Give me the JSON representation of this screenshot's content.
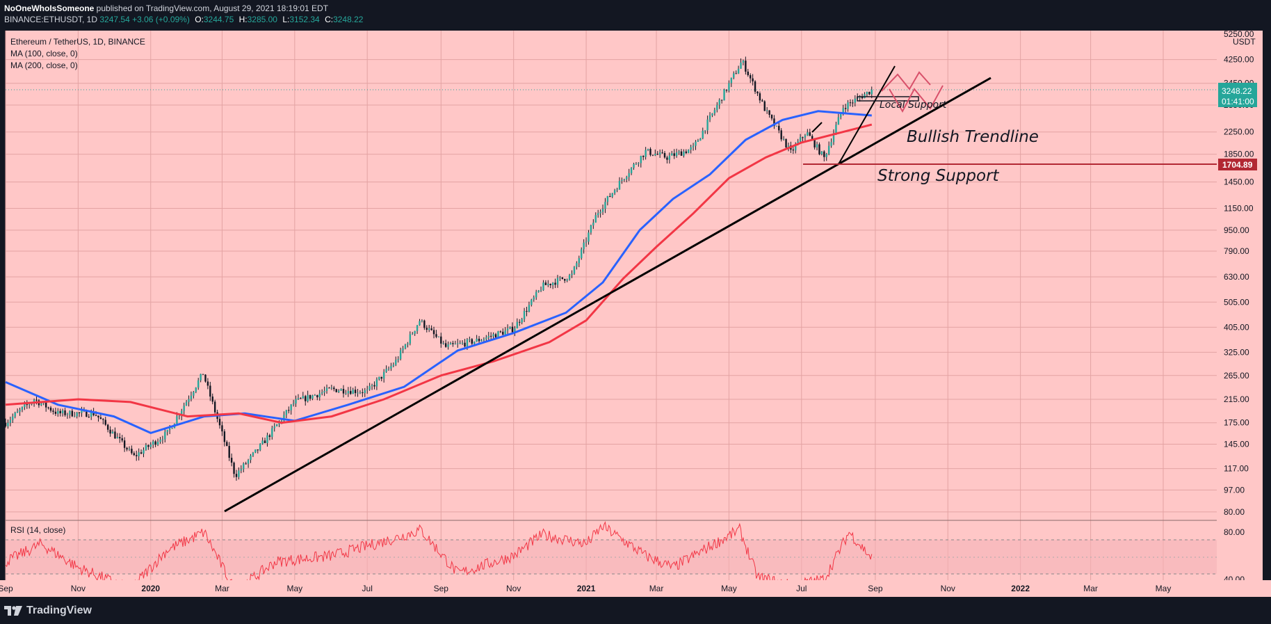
{
  "header": {
    "author": "NoOneWhoIsSomeone",
    "published_text": " published on TradingView.com, August 29, 2021 18:19:01 EDT",
    "symbol": "BINANCE:ETHUSDT, 1D",
    "last": "3247.54",
    "change": "+3.06 (+0.09%)",
    "o_label": "O:",
    "o": "3244.75",
    "h_label": "H:",
    "h": "3285.00",
    "l_label": "L:",
    "l": "3152.34",
    "c_label": "C:",
    "c": "3248.22"
  },
  "legend": {
    "title": "Ethereum / TetherUS, 1D, BINANCE",
    "ma100": "MA (100, close, 0)",
    "ma200": "MA (200, close, 0)",
    "rsi": "RSI (14, close)"
  },
  "price_axis": {
    "unit": "USDT",
    "top_cut": "5250.00",
    "ticks": [
      "4250.00",
      "3450.00",
      "2850.00",
      "2250.00",
      "1850.00",
      "1450.00",
      "1150.00",
      "950.00",
      "790.00",
      "630.00",
      "505.00",
      "405.00",
      "325.00",
      "265.00",
      "215.00",
      "175.00",
      "145.00",
      "117.00",
      "97.00",
      "80.00"
    ],
    "last_price": "3248.22",
    "countdown": "01:41:00",
    "support_price": "1704.89"
  },
  "rsi_axis": {
    "ticks": [
      "80.00",
      "40.00"
    ]
  },
  "time_axis": {
    "labels": [
      "Sep",
      "Nov",
      "2020",
      "Mar",
      "May",
      "Jul",
      "Sep",
      "Nov",
      "2021",
      "Mar",
      "May",
      "Jul",
      "Sep",
      "Nov",
      "2022",
      "Mar",
      "May"
    ],
    "bold": [
      "2020",
      "2021",
      "2022"
    ]
  },
  "annotations": {
    "local_support": "Local Support",
    "bullish_trendline": "Bullish Trendline",
    "strong_support": "Strong Support"
  },
  "footer": {
    "brand": "TradingView"
  },
  "colors": {
    "background": "#ffc7c7",
    "ma100": "#2962ff",
    "ma200": "#f23645",
    "rsi": "#f23645",
    "up_candle": "#26a69a",
    "down_candle": "#131722",
    "price_tag": "#26a69a",
    "support_tag": "#b22833"
  },
  "chart_data": {
    "type": "line",
    "title": "Ethereum / TetherUS, 1D, BINANCE",
    "xlabel": "",
    "ylabel": "USDT",
    "y_scale": "log",
    "ylim": [
      78,
      5250
    ],
    "x_range": [
      "2019-09-01",
      "2022-06-15"
    ],
    "grid": true,
    "price": {
      "name": "close",
      "x": [
        "2019-09-01",
        "2019-09-25",
        "2019-10-15",
        "2019-11-15",
        "2019-12-18",
        "2020-01-15",
        "2020-02-14",
        "2020-03-12",
        "2020-04-01",
        "2020-05-01",
        "2020-06-01",
        "2020-07-01",
        "2020-07-25",
        "2020-08-14",
        "2020-09-05",
        "2020-10-01",
        "2020-11-01",
        "2020-11-25",
        "2020-12-20",
        "2021-01-10",
        "2021-02-01",
        "2021-02-20",
        "2021-03-10",
        "2021-04-01",
        "2021-05-12",
        "2021-06-01",
        "2021-06-22",
        "2021-07-05",
        "2021-07-20",
        "2021-08-05",
        "2021-08-29"
      ],
      "y": [
        175,
        215,
        190,
        190,
        130,
        160,
        270,
        110,
        140,
        210,
        235,
        230,
        300,
        430,
        340,
        360,
        400,
        580,
        640,
        1100,
        1500,
        1900,
        1800,
        1950,
        4200,
        2700,
        1880,
        2250,
        1790,
        2800,
        3248
      ]
    },
    "series": [
      {
        "name": "MA (100, close, 0)",
        "x": [
          "2019-09-01",
          "2019-10-15",
          "2019-12-01",
          "2020-01-01",
          "2020-02-15",
          "2020-03-20",
          "2020-05-01",
          "2020-06-15",
          "2020-08-01",
          "2020-09-15",
          "2020-11-01",
          "2020-12-15",
          "2021-01-15",
          "2021-02-15",
          "2021-03-15",
          "2021-04-15",
          "2021-05-15",
          "2021-06-15",
          "2021-07-15",
          "2021-08-29"
        ],
        "values": [
          250,
          205,
          185,
          160,
          185,
          190,
          178,
          205,
          240,
          330,
          385,
          460,
          600,
          950,
          1250,
          1550,
          2100,
          2500,
          2700,
          2600
        ]
      },
      {
        "name": "MA (200, close, 0)",
        "x": [
          "2019-09-01",
          "2019-11-01",
          "2019-12-15",
          "2020-02-01",
          "2020-03-15",
          "2020-04-20",
          "2020-06-01",
          "2020-07-15",
          "2020-09-01",
          "2020-10-15",
          "2020-12-01",
          "2021-01-01",
          "2021-02-01",
          "2021-03-01",
          "2021-04-01",
          "2021-05-01",
          "2021-06-01",
          "2021-07-01",
          "2021-08-29"
        ],
        "values": [
          205,
          215,
          210,
          185,
          190,
          175,
          185,
          215,
          265,
          300,
          355,
          430,
          620,
          820,
          1100,
          1500,
          1800,
          2050,
          2400
        ]
      }
    ],
    "rsi": {
      "name": "RSI (14, close)",
      "ylim": [
        30,
        90
      ],
      "x": [
        "2019-09-01",
        "2019-10-01",
        "2019-11-01",
        "2019-12-15",
        "2020-01-15",
        "2020-02-15",
        "2020-03-12",
        "2020-04-15",
        "2020-06-01",
        "2020-07-25",
        "2020-08-15",
        "2020-09-15",
        "2020-11-01",
        "2020-11-25",
        "2021-01-01",
        "2021-01-15",
        "2021-02-20",
        "2021-03-15",
        "2021-04-15",
        "2021-05-10",
        "2021-05-25",
        "2021-06-22",
        "2021-07-20",
        "2021-08-10",
        "2021-08-29"
      ],
      "values": [
        55,
        70,
        50,
        32,
        65,
        80,
        30,
        55,
        60,
        75,
        82,
        45,
        60,
        78,
        70,
        85,
        60,
        50,
        68,
        82,
        42,
        35,
        40,
        80,
        58
      ]
    }
  }
}
